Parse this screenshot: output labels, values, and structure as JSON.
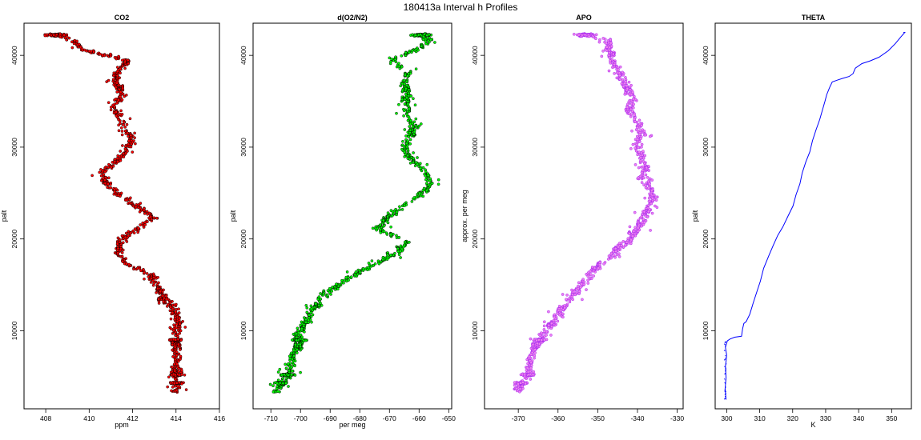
{
  "figure_title": "180413a   Interval h Profiles",
  "chart_data": [
    {
      "type": "scatter",
      "title": "CO2",
      "xlabel": "ppm",
      "ylabel": "palt",
      "xlim": [
        407.0,
        416.0
      ],
      "ylim": [
        1500,
        43500
      ],
      "xticks": [
        408,
        410,
        412,
        414,
        416
      ],
      "yticks": [
        10000,
        20000,
        30000,
        40000
      ],
      "color": "#ff0000",
      "edge_color": "#000000",
      "profile": [
        [
          408.5,
          42300
        ],
        [
          409.3,
          41500
        ],
        [
          409.7,
          40600
        ],
        [
          411.8,
          39400
        ],
        [
          411.3,
          38200
        ],
        [
          411.2,
          37000
        ],
        [
          411.6,
          35800
        ],
        [
          411.1,
          34500
        ],
        [
          411.4,
          33300
        ],
        [
          411.7,
          32000
        ],
        [
          411.9,
          31000
        ],
        [
          411.8,
          29800
        ],
        [
          411.3,
          28500
        ],
        [
          410.6,
          27300
        ],
        [
          410.8,
          26000
        ],
        [
          411.4,
          24800
        ],
        [
          412.2,
          23500
        ],
        [
          413.0,
          22300
        ],
        [
          412.1,
          21000
        ],
        [
          411.4,
          19800
        ],
        [
          411.3,
          18600
        ],
        [
          411.7,
          17300
        ],
        [
          412.9,
          16000
        ],
        [
          413.1,
          14800
        ],
        [
          413.5,
          13500
        ],
        [
          413.9,
          12300
        ],
        [
          414.1,
          11000
        ],
        [
          414.0,
          9800
        ],
        [
          414.0,
          8600
        ],
        [
          414.0,
          7300
        ],
        [
          414.0,
          6000
        ],
        [
          414.0,
          4800
        ],
        [
          414.0,
          3500
        ]
      ]
    },
    {
      "type": "scatter",
      "title": "d(O2/N2)",
      "xlabel": "per meg",
      "ylabel": "palt",
      "xlim": [
        -716,
        -649
      ],
      "ylim": [
        1500,
        43500
      ],
      "xticks": [
        -710,
        -700,
        -690,
        -680,
        -670,
        -660,
        -650
      ],
      "yticks": [
        10000,
        20000,
        30000,
        40000
      ],
      "color": "#00ff00",
      "edge_color": "#000000",
      "profile": [
        [
          -659,
          42300
        ],
        [
          -656,
          41400
        ],
        [
          -662,
          40500
        ],
        [
          -670,
          39300
        ],
        [
          -663,
          38200
        ],
        [
          -665,
          37000
        ],
        [
          -664,
          35800
        ],
        [
          -665,
          34500
        ],
        [
          -664,
          33200
        ],
        [
          -661,
          32000
        ],
        [
          -664,
          31000
        ],
        [
          -665,
          29800
        ],
        [
          -662,
          28500
        ],
        [
          -658,
          27300
        ],
        [
          -656,
          26000
        ],
        [
          -660,
          24800
        ],
        [
          -666,
          23500
        ],
        [
          -671,
          22200
        ],
        [
          -674,
          21000
        ],
        [
          -664,
          19800
        ],
        [
          -667,
          18500
        ],
        [
          -675,
          17300
        ],
        [
          -682,
          16000
        ],
        [
          -688,
          14800
        ],
        [
          -693,
          13500
        ],
        [
          -696,
          12300
        ],
        [
          -698,
          11000
        ],
        [
          -701,
          9800
        ],
        [
          -700,
          8600
        ],
        [
          -703,
          7300
        ],
        [
          -703,
          6000
        ],
        [
          -705,
          4800
        ],
        [
          -708,
          3700
        ]
      ]
    },
    {
      "type": "scatter",
      "title": "APO",
      "xlabel": "",
      "ylabel": "approx. per meg",
      "xlim": [
        -378.5,
        -328.5
      ],
      "ylim": [
        1500,
        43500
      ],
      "xticks": [
        -370,
        -360,
        -350,
        -340,
        -330
      ],
      "yticks": [
        10000,
        20000,
        30000,
        40000
      ],
      "color": "#ee82ee",
      "edge_color": "#a020f0",
      "profile": [
        [
          -353,
          42300
        ],
        [
          -347,
          41400
        ],
        [
          -347,
          40300
        ],
        [
          -346,
          39000
        ],
        [
          -344,
          37800
        ],
        [
          -343,
          36600
        ],
        [
          -341,
          35300
        ],
        [
          -342,
          34100
        ],
        [
          -340,
          32800
        ],
        [
          -339,
          31600
        ],
        [
          -340,
          30400
        ],
        [
          -339,
          29100
        ],
        [
          -338,
          27900
        ],
        [
          -339,
          26600
        ],
        [
          -337,
          25400
        ],
        [
          -336,
          24200
        ],
        [
          -338,
          22900
        ],
        [
          -339,
          21700
        ],
        [
          -341,
          20400
        ],
        [
          -344,
          19200
        ],
        [
          -347,
          17900
        ],
        [
          -351,
          16700
        ],
        [
          -353,
          15400
        ],
        [
          -356,
          14200
        ],
        [
          -358,
          13000
        ],
        [
          -360,
          11700
        ],
        [
          -362,
          10500
        ],
        [
          -364,
          9300
        ],
        [
          -366,
          8000
        ],
        [
          -367,
          6800
        ],
        [
          -367,
          5500
        ],
        [
          -369,
          4400
        ],
        [
          -370,
          3600
        ]
      ]
    },
    {
      "type": "line",
      "title": "THETA",
      "xlabel": "K",
      "ylabel": "palt",
      "xlim": [
        296.5,
        356.0
      ],
      "ylim": [
        1500,
        43500
      ],
      "xticks": [
        300,
        310,
        320,
        330,
        340,
        350
      ],
      "yticks": [
        10000,
        20000,
        30000,
        40000
      ],
      "color": "#0000ff",
      "x": [
        299.8,
        299.5,
        299.8,
        299.6,
        300.0,
        299.6,
        300.2,
        301.0,
        302.4,
        304.5,
        304.8,
        305.2,
        305.9,
        307.0,
        308.0,
        309.0,
        310.2,
        311.2,
        312.8,
        314.1,
        315.5,
        317.0,
        318.6,
        320.1,
        321.0,
        322.2,
        322.9,
        324.0,
        325.2,
        326.0,
        327.1,
        328.2,
        329.0,
        329.8,
        330.3,
        331.2,
        332.0,
        333.5,
        335.2,
        337.1,
        338.3,
        339.0,
        341.0,
        343.5,
        346.2,
        349.0,
        351.2,
        352.8,
        354.0,
        353.6
      ],
      "y": [
        2500,
        3700,
        4900,
        6100,
        7300,
        8200,
        8900,
        9100,
        9300,
        9400,
        10200,
        10800,
        11000,
        11800,
        13000,
        14100,
        15400,
        16800,
        18200,
        19300,
        20400,
        21300,
        22500,
        23600,
        24800,
        26000,
        27200,
        28400,
        29500,
        30700,
        31900,
        33000,
        34000,
        35000,
        35700,
        36500,
        37100,
        37300,
        37500,
        37700,
        38000,
        38600,
        39100,
        39400,
        39800,
        40500,
        41300,
        42000,
        42500,
        42500
      ]
    }
  ]
}
